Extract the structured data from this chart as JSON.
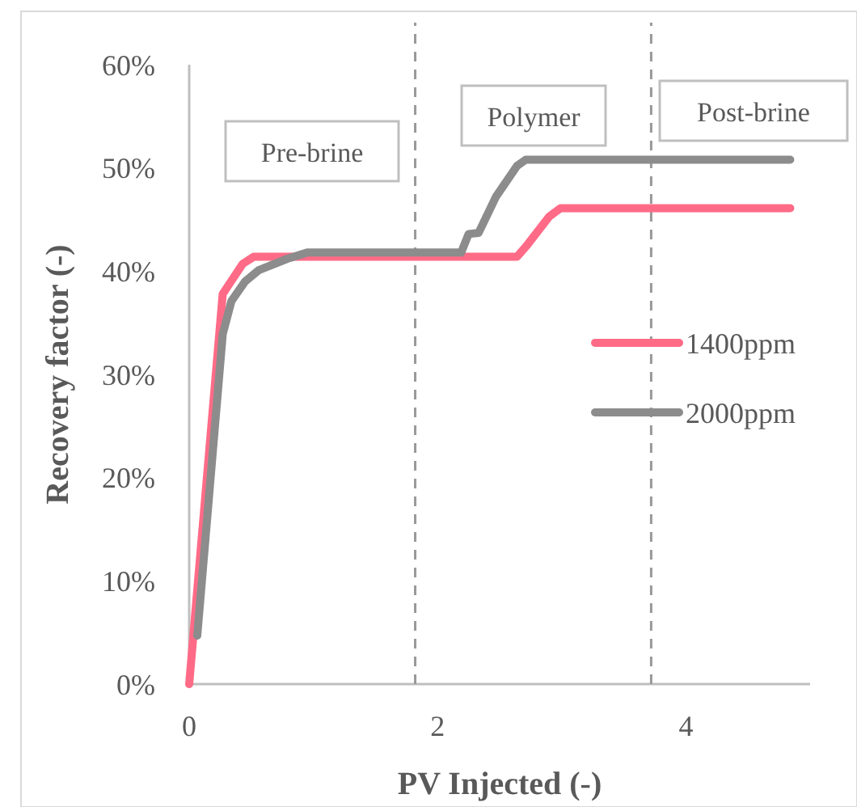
{
  "chart_data": {
    "type": "line",
    "xlabel": "PV Injected (-)",
    "ylabel": "Recovery factor (-)",
    "xlim": [
      0,
      5
    ],
    "xticks": [
      0,
      2,
      4
    ],
    "ylim": [
      0,
      60
    ],
    "yticks": [
      {
        "value": 0,
        "label": "0%"
      },
      {
        "value": 10,
        "label": "10%"
      },
      {
        "value": 20,
        "label": "20%"
      },
      {
        "value": 30,
        "label": "30%"
      },
      {
        "value": 40,
        "label": "40%"
      },
      {
        "value": 50,
        "label": "50%"
      },
      {
        "value": 60,
        "label": "60%"
      }
    ],
    "series": [
      {
        "name": "1400ppm",
        "color": "#ff6b87",
        "x": [
          0,
          0.27,
          0.43,
          0.52,
          1.0,
          2.0,
          2.64,
          2.72,
          2.9,
          2.99,
          3.5,
          4.84
        ],
        "values": [
          0,
          37.8,
          40.7,
          41.4,
          41.4,
          41.4,
          41.4,
          42.5,
          45.3,
          46.1,
          46.1,
          46.1
        ]
      },
      {
        "name": "2000ppm",
        "color": "#8c8c8c",
        "x": [
          0.065,
          0.27,
          0.34,
          0.45,
          0.56,
          0.79,
          0.95,
          1.5,
          2.19,
          2.25,
          2.33,
          2.47,
          2.64,
          2.71,
          3.5,
          4.84
        ],
        "values": [
          4.7,
          33.9,
          37.1,
          39.0,
          40.1,
          41.2,
          41.8,
          41.8,
          41.8,
          43.6,
          43.7,
          47.2,
          50.2,
          50.8,
          50.8,
          50.8
        ]
      }
    ],
    "ref_lines": [
      {
        "axis": "x",
        "value": 1.82,
        "color": "#999999",
        "line_style": "dashed"
      },
      {
        "axis": "x",
        "value": 3.72,
        "color": "#999999",
        "line_style": "dashed"
      }
    ],
    "annotations": [
      "Pre-brine",
      "Polymer",
      "Post-brine"
    ],
    "legend": "right",
    "grid": false,
    "marker": "none",
    "line_style": "solid"
  }
}
